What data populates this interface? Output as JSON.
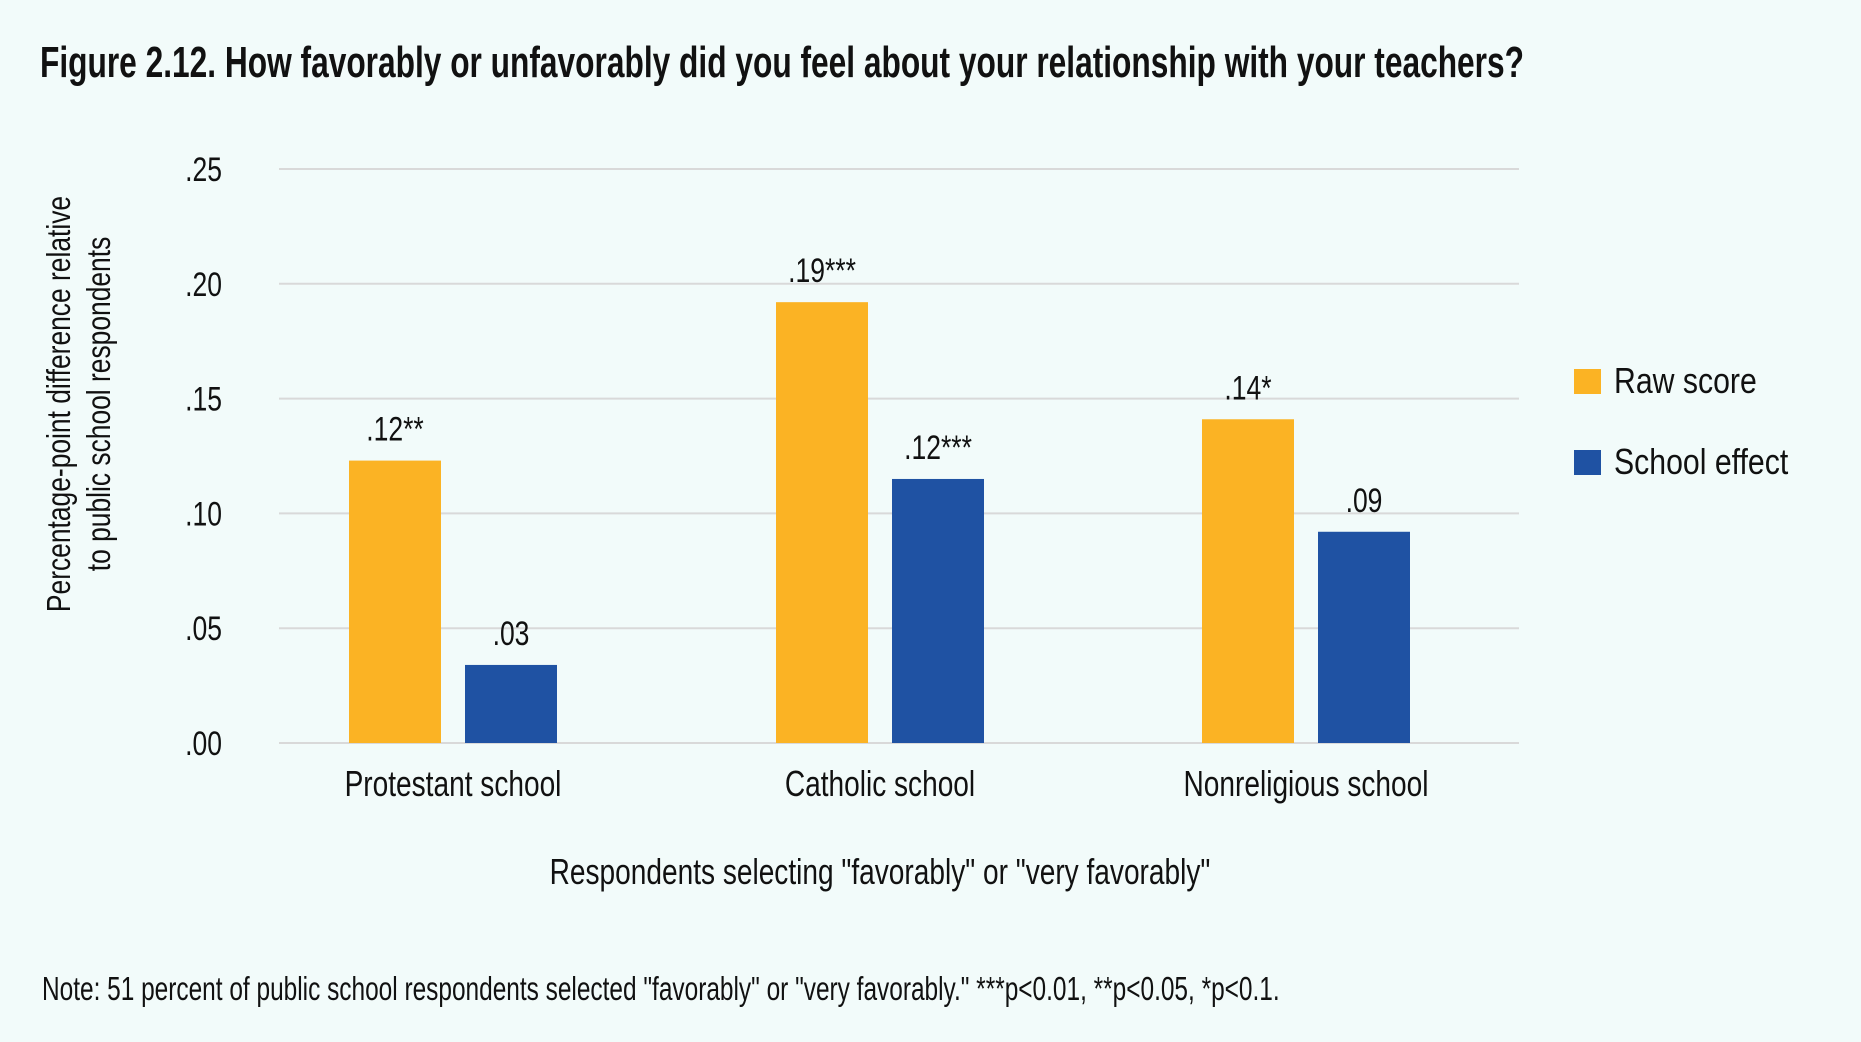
{
  "title": "Figure 2.12. How favorably or unfavorably did you feel about your relationship with your teachers?",
  "note": "Note: 51 percent of public school respondents selected \"favorably\" or \"very favorably.\" ***p<0.01, **p<0.05, *p<0.1.",
  "colors": {
    "raw": "#FBB324",
    "effect": "#1F52A3",
    "grid": "#D9D9D9",
    "background": "#F2FBFA"
  },
  "chart_data": {
    "type": "bar",
    "title": "Figure 2.12. How favorably or unfavorably did you feel about your relationship with your teachers?",
    "xlabel": "Respondents selecting \"favorably\" or \"very favorably\"",
    "ylabel": "Percentage-point difference relative to public school respondents",
    "ylabel_lines": [
      "Percentage-point difference relative",
      "to public school respondents"
    ],
    "ylim": [
      0,
      0.25
    ],
    "yticks": [
      0,
      0.05,
      0.1,
      0.15,
      0.2,
      0.25
    ],
    "ytick_labels": [
      ".00",
      ".05",
      ".10",
      ".15",
      ".20",
      ".25"
    ],
    "grid": true,
    "legend_position": "right",
    "categories": [
      "Protestant school",
      "Catholic school",
      "Nonreligious school"
    ],
    "series": [
      {
        "name": "Raw score",
        "color": "#FBB324",
        "values": [
          0.123,
          0.192,
          0.141
        ],
        "labels": [
          ".12**",
          ".19***",
          ".14*"
        ]
      },
      {
        "name": "School effect",
        "color": "#1F52A3",
        "values": [
          0.034,
          0.115,
          0.092
        ],
        "labels": [
          ".03",
          ".12***",
          ".09"
        ]
      }
    ]
  }
}
